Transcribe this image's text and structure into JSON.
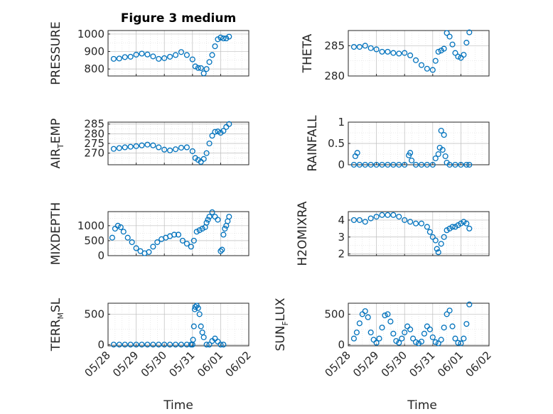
{
  "figure": {
    "title": "Figure 3 medium",
    "x_axis_label": "Time"
  },
  "chart_data": [
    {
      "type": "scatter",
      "id": "pressure",
      "ylabel": "PRESSURE",
      "ylim": [
        760,
        1020
      ],
      "yticks": [
        800,
        900,
        1000
      ],
      "xlim": [
        "05/28",
        "06/02"
      ],
      "xticks": [
        "05/28",
        "05/29",
        "05/30",
        "05/31",
        "06/01",
        "06/02"
      ],
      "grid": true,
      "series": [
        {
          "color": "#0072BD",
          "marker": "o",
          "x": [
            0.2,
            0.4,
            0.6,
            0.8,
            1.0,
            1.2,
            1.4,
            1.6,
            1.8,
            2.0,
            2.2,
            2.4,
            2.6,
            2.8,
            3.0,
            3.1,
            3.2,
            3.3,
            3.4,
            3.5,
            3.6,
            3.7,
            3.8,
            3.9,
            4.0,
            4.1,
            4.2,
            4.3
          ],
          "y": [
            858,
            860,
            868,
            870,
            882,
            888,
            883,
            872,
            858,
            862,
            870,
            880,
            897,
            880,
            855,
            815,
            806,
            805,
            775,
            800,
            840,
            880,
            930,
            970,
            980,
            975,
            975,
            985
          ]
        }
      ]
    },
    {
      "type": "scatter",
      "id": "theta",
      "ylabel": "THETA",
      "ylim": [
        280,
        287.5
      ],
      "yticks": [
        280,
        285
      ],
      "xlim": [
        "05/28",
        "06/02"
      ],
      "xticks": [
        "05/28",
        "05/29",
        "05/30",
        "05/31",
        "06/01",
        "06/02"
      ],
      "grid": true,
      "series": [
        {
          "color": "#0072BD",
          "marker": "o",
          "x": [
            0.2,
            0.4,
            0.6,
            0.8,
            1.0,
            1.2,
            1.4,
            1.6,
            1.8,
            2.0,
            2.2,
            2.4,
            2.6,
            2.8,
            3.0,
            3.1,
            3.2,
            3.3,
            3.4,
            3.5,
            3.6,
            3.7,
            3.8,
            3.9,
            4.0,
            4.1,
            4.2,
            4.3
          ],
          "y": [
            284.8,
            284.8,
            285.0,
            284.6,
            284.4,
            284.0,
            284.0,
            283.8,
            283.7,
            283.8,
            283.4,
            282.6,
            281.8,
            281.2,
            281.0,
            282.5,
            284.0,
            284.2,
            284.5,
            287.1,
            286.5,
            285.2,
            283.8,
            283.2,
            283.0,
            283.5,
            285.5,
            287.2
          ]
        }
      ]
    },
    {
      "type": "scatter",
      "id": "air_temp",
      "ylabel": "AIR",
      "ylabel_subscript": "T",
      "ylabel_suffix": "EMP",
      "ylim": [
        264,
        286
      ],
      "yticks": [
        270,
        275,
        280,
        285
      ],
      "xlim": [
        "05/28",
        "06/02"
      ],
      "xticks": [
        "05/28",
        "05/29",
        "05/30",
        "05/31",
        "06/01",
        "06/02"
      ],
      "grid": true,
      "series": [
        {
          "color": "#0072BD",
          "marker": "o",
          "x": [
            0.2,
            0.4,
            0.6,
            0.8,
            1.0,
            1.2,
            1.4,
            1.6,
            1.8,
            2.0,
            2.2,
            2.4,
            2.6,
            2.8,
            3.0,
            3.1,
            3.2,
            3.3,
            3.4,
            3.5,
            3.6,
            3.7,
            3.8,
            3.9,
            4.0,
            4.1,
            4.2,
            4.3
          ],
          "y": [
            272.2,
            272.6,
            273.0,
            273.3,
            273.6,
            274.0,
            274.4,
            274.0,
            273.0,
            271.8,
            271.4,
            272.0,
            272.8,
            273.0,
            271.0,
            267.5,
            266.5,
            265.5,
            267.0,
            270.0,
            275.0,
            279.0,
            281.0,
            281.2,
            280.5,
            281.5,
            283.5,
            285.0
          ]
        }
      ]
    },
    {
      "type": "scatter",
      "id": "rainfall",
      "ylabel": "RAINFALL",
      "ylim": [
        0,
        1
      ],
      "yticks": [
        0,
        0.5,
        1
      ],
      "xlim": [
        "05/28",
        "06/02"
      ],
      "xticks": [
        "05/28",
        "05/29",
        "05/30",
        "05/31",
        "06/01",
        "06/02"
      ],
      "grid": true,
      "series": [
        {
          "color": "#0072BD",
          "marker": "o",
          "x": [
            0.2,
            0.25,
            0.32,
            0.4,
            0.6,
            0.8,
            1.0,
            1.2,
            1.4,
            1.6,
            1.8,
            2.0,
            2.15,
            2.2,
            2.25,
            2.4,
            2.6,
            2.8,
            3.0,
            3.1,
            3.2,
            3.25,
            3.3,
            3.35,
            3.4,
            3.45,
            3.5,
            3.6,
            3.8,
            4.0,
            4.2,
            4.3
          ],
          "y": [
            0,
            0.2,
            0.28,
            0,
            0,
            0,
            0,
            0,
            0,
            0,
            0,
            0,
            0.22,
            0.28,
            0.1,
            0,
            0,
            0,
            0,
            0.15,
            0.25,
            0.4,
            0.8,
            0.35,
            0.7,
            0.2,
            0.05,
            0,
            0,
            0,
            0,
            0
          ]
        }
      ]
    },
    {
      "type": "scatter",
      "id": "mixdepth",
      "ylabel": "MIXDEPTH",
      "ylim": [
        0,
        1470
      ],
      "yticks": [
        0,
        500,
        1000
      ],
      "xlim": [
        "05/28",
        "06/02"
      ],
      "xticks": [
        "05/28",
        "05/29",
        "05/30",
        "05/31",
        "06/01",
        "06/02"
      ],
      "grid": true,
      "series": [
        {
          "color": "#0072BD",
          "marker": "o",
          "x": [
            0.15,
            0.25,
            0.35,
            0.45,
            0.55,
            0.7,
            0.85,
            1.0,
            1.15,
            1.3,
            1.45,
            1.6,
            1.75,
            1.9,
            2.05,
            2.2,
            2.35,
            2.5,
            2.65,
            2.8,
            2.95,
            3.05,
            3.15,
            3.25,
            3.35,
            3.45,
            3.5,
            3.55,
            3.6,
            3.7,
            3.8,
            3.9,
            4.0,
            4.05,
            4.1,
            4.15,
            4.2,
            4.25,
            4.3
          ],
          "y": [
            600,
            900,
            1000,
            950,
            800,
            600,
            450,
            250,
            150,
            80,
            120,
            300,
            450,
            550,
            600,
            650,
            700,
            700,
            500,
            400,
            300,
            500,
            800,
            850,
            900,
            950,
            1100,
            1200,
            1300,
            1450,
            1300,
            1200,
            150,
            200,
            700,
            900,
            1000,
            1150,
            1300
          ]
        }
      ]
    },
    {
      "type": "scatter",
      "id": "h2omixra",
      "ylabel": "H2OMIXRA",
      "ylim": [
        1.9,
        4.5
      ],
      "yticks": [
        2,
        3,
        4
      ],
      "xlim": [
        "05/28",
        "06/02"
      ],
      "xticks": [
        "05/28",
        "05/29",
        "05/30",
        "05/31",
        "06/01",
        "06/02"
      ],
      "grid": true,
      "series": [
        {
          "color": "#0072BD",
          "marker": "o",
          "x": [
            0.2,
            0.4,
            0.6,
            0.8,
            1.0,
            1.2,
            1.4,
            1.6,
            1.8,
            2.0,
            2.2,
            2.4,
            2.6,
            2.8,
            2.9,
            3.0,
            3.1,
            3.15,
            3.2,
            3.3,
            3.4,
            3.5,
            3.6,
            3.7,
            3.8,
            3.9,
            4.0,
            4.1,
            4.2,
            4.3
          ],
          "y": [
            4.0,
            4.0,
            3.9,
            4.1,
            4.2,
            4.3,
            4.3,
            4.3,
            4.2,
            4.0,
            3.9,
            3.8,
            3.8,
            3.6,
            3.3,
            3.0,
            2.8,
            2.3,
            2.1,
            2.6,
            3.0,
            3.4,
            3.5,
            3.6,
            3.6,
            3.7,
            3.8,
            3.9,
            3.8,
            3.5
          ]
        }
      ]
    },
    {
      "type": "scatter",
      "id": "terr_msl",
      "ylabel": "TERR",
      "ylabel_subscript": "M",
      "ylabel_suffix": "SL",
      "ylim": [
        -20,
        680
      ],
      "yticks": [
        0,
        500
      ],
      "xlim": [
        "05/28",
        "06/02"
      ],
      "xticks": [
        "05/28",
        "05/29",
        "05/30",
        "05/31",
        "06/01",
        "06/02"
      ],
      "grid": true,
      "series": [
        {
          "color": "#0072BD",
          "marker": "o",
          "x": [
            0.2,
            0.4,
            0.6,
            0.8,
            1.0,
            1.2,
            1.4,
            1.6,
            1.8,
            2.0,
            2.2,
            2.4,
            2.6,
            2.8,
            2.95,
            3.0,
            3.02,
            3.05,
            3.08,
            3.1,
            3.15,
            3.2,
            3.25,
            3.3,
            3.35,
            3.4,
            3.5,
            3.6,
            3.7,
            3.8,
            3.9,
            4.0,
            4.1
          ],
          "y": [
            0,
            0,
            0,
            0,
            0,
            0,
            0,
            0,
            0,
            0,
            0,
            0,
            0,
            0,
            0,
            0,
            80,
            300,
            580,
            620,
            640,
            600,
            500,
            300,
            200,
            120,
            0,
            0,
            60,
            100,
            50,
            0,
            0
          ]
        }
      ]
    },
    {
      "type": "scatter",
      "id": "sun_flux",
      "ylabel": "SUN",
      "ylabel_subscript": "F",
      "ylabel_suffix": "LUX",
      "ylim": [
        -20,
        680
      ],
      "yticks": [
        0,
        500
      ],
      "xlim": [
        "05/28",
        "06/02"
      ],
      "xticks": [
        "05/28",
        "05/29",
        "05/30",
        "05/31",
        "06/01",
        "06/02"
      ],
      "grid": true,
      "series": [
        {
          "color": "#0072BD",
          "marker": "o",
          "x": [
            0.2,
            0.3,
            0.4,
            0.5,
            0.6,
            0.7,
            0.8,
            0.9,
            1.0,
            1.1,
            1.2,
            1.3,
            1.4,
            1.5,
            1.6,
            1.7,
            1.8,
            1.9,
            2.0,
            2.1,
            2.2,
            2.3,
            2.4,
            2.5,
            2.6,
            2.7,
            2.8,
            2.9,
            3.0,
            3.1,
            3.2,
            3.3,
            3.4,
            3.5,
            3.6,
            3.7,
            3.8,
            3.9,
            4.0,
            4.1,
            4.2,
            4.3
          ],
          "y": [
            100,
            200,
            350,
            500,
            550,
            450,
            200,
            80,
            30,
            100,
            280,
            480,
            500,
            380,
            180,
            60,
            30,
            100,
            200,
            300,
            250,
            100,
            40,
            20,
            50,
            180,
            300,
            250,
            120,
            40,
            20,
            80,
            280,
            500,
            560,
            300,
            100,
            30,
            20,
            100,
            340,
            660
          ]
        }
      ]
    }
  ]
}
